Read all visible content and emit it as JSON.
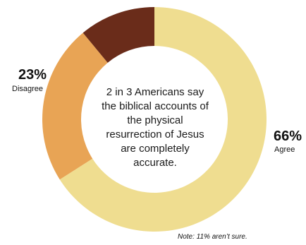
{
  "chart_data": {
    "type": "pie",
    "donut": true,
    "categories": [
      "Agree",
      "Disagree",
      "Not sure"
    ],
    "values": [
      66,
      23,
      11
    ],
    "colors": [
      "#EFDD90",
      "#E8A455",
      "#6A2C1A"
    ],
    "labels": [
      {
        "category": "Agree",
        "value_text": "66%",
        "category_text": "Agree"
      },
      {
        "category": "Disagree",
        "value_text": "23%",
        "category_text": "Disagree"
      }
    ],
    "center_text": "2 in 3 Americans say the biblical accounts of the physical resurrection of Jesus are completely accurate.",
    "note": "Note: 11% aren’t sure."
  }
}
